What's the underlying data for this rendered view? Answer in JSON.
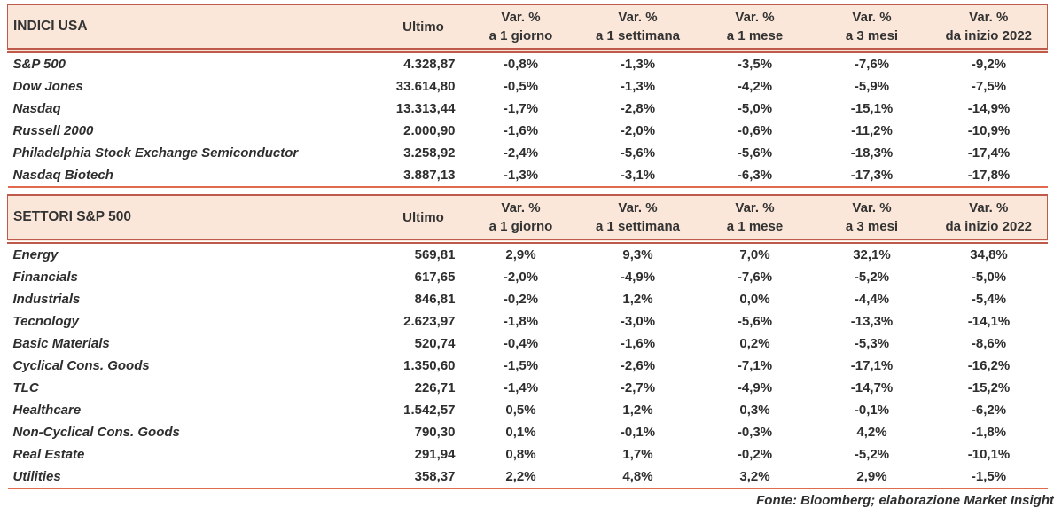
{
  "colors": {
    "header_bg": "#FBE7D9",
    "header_border": "#BD5A4C",
    "table_bottom_border": "#E06A4C",
    "text": "#2E2E2E"
  },
  "footer": {
    "source_note": "Fonte: Bloomberg; elaborazione Market Insight"
  },
  "tables": [
    {
      "title": "INDICI USA",
      "ultimo_header": "Ultimo",
      "var_headers": [
        {
          "l1": "Var. %",
          "l2": "a 1 giorno"
        },
        {
          "l1": "Var. %",
          "l2": "a 1 settimana"
        },
        {
          "l1": "Var. %",
          "l2": "a 1 mese"
        },
        {
          "l1": "Var. %",
          "l2": "a 3 mesi"
        },
        {
          "l1": "Var. %",
          "l2": "da inizio 2022"
        }
      ],
      "rows": [
        {
          "name": "S&P 500",
          "ultimo": "4.328,87",
          "vars": [
            "-0,8%",
            "-1,3%",
            "-3,5%",
            "-7,6%",
            "-9,2%"
          ]
        },
        {
          "name": "Dow Jones",
          "ultimo": "33.614,80",
          "vars": [
            "-0,5%",
            "-1,3%",
            "-4,2%",
            "-5,9%",
            "-7,5%"
          ]
        },
        {
          "name": "Nasdaq",
          "ultimo": "13.313,44",
          "vars": [
            "-1,7%",
            "-2,8%",
            "-5,0%",
            "-15,1%",
            "-14,9%"
          ]
        },
        {
          "name": "Russell 2000",
          "ultimo": "2.000,90",
          "vars": [
            "-1,6%",
            "-2,0%",
            "-0,6%",
            "-11,2%",
            "-10,9%"
          ]
        },
        {
          "name": "Philadelphia Stock Exchange Semiconductor",
          "ultimo": "3.258,92",
          "vars": [
            "-2,4%",
            "-5,6%",
            "-5,6%",
            "-18,3%",
            "-17,4%"
          ]
        },
        {
          "name": "Nasdaq Biotech",
          "ultimo": "3.887,13",
          "vars": [
            "-1,3%",
            "-3,1%",
            "-6,3%",
            "-17,3%",
            "-17,8%"
          ]
        }
      ]
    },
    {
      "title": "SETTORI S&P 500",
      "ultimo_header": "Ultimo",
      "var_headers": [
        {
          "l1": "Var. %",
          "l2": "a 1 giorno"
        },
        {
          "l1": "Var. %",
          "l2": "a 1 settimana"
        },
        {
          "l1": "Var. %",
          "l2": "a 1 mese"
        },
        {
          "l1": "Var. %",
          "l2": "a 3 mesi"
        },
        {
          "l1": "Var. %",
          "l2": "da inizio 2022"
        }
      ],
      "rows": [
        {
          "name": "Energy",
          "ultimo": "569,81",
          "vars": [
            "2,9%",
            "9,3%",
            "7,0%",
            "32,1%",
            "34,8%"
          ]
        },
        {
          "name": "Financials",
          "ultimo": "617,65",
          "vars": [
            "-2,0%",
            "-4,9%",
            "-7,6%",
            "-5,2%",
            "-5,0%"
          ]
        },
        {
          "name": "Industrials",
          "ultimo": "846,81",
          "vars": [
            "-0,2%",
            "1,2%",
            "0,0%",
            "-4,4%",
            "-5,4%"
          ]
        },
        {
          "name": "Tecnology",
          "ultimo": "2.623,97",
          "vars": [
            "-1,8%",
            "-3,0%",
            "-5,6%",
            "-13,3%",
            "-14,1%"
          ]
        },
        {
          "name": "Basic Materials",
          "ultimo": "520,74",
          "vars": [
            "-0,4%",
            "-1,6%",
            "0,2%",
            "-5,3%",
            "-8,6%"
          ]
        },
        {
          "name": "Cyclical Cons. Goods",
          "ultimo": "1.350,60",
          "vars": [
            "-1,5%",
            "-2,6%",
            "-7,1%",
            "-17,1%",
            "-16,2%"
          ]
        },
        {
          "name": "TLC",
          "ultimo": "226,71",
          "vars": [
            "-1,4%",
            "-2,7%",
            "-4,9%",
            "-14,7%",
            "-15,2%"
          ]
        },
        {
          "name": "Healthcare",
          "ultimo": "1.542,57",
          "vars": [
            "0,5%",
            "1,2%",
            "0,3%",
            "-0,1%",
            "-6,2%"
          ]
        },
        {
          "name": "Non-Cyclical Cons. Goods",
          "ultimo": "790,30",
          "vars": [
            "0,1%",
            "-0,1%",
            "-0,3%",
            "4,2%",
            "-1,8%"
          ]
        },
        {
          "name": "Real Estate",
          "ultimo": "291,94",
          "vars": [
            "0,8%",
            "1,7%",
            "-0,2%",
            "-5,2%",
            "-10,1%"
          ]
        },
        {
          "name": "Utilities",
          "ultimo": "358,37",
          "vars": [
            "2,2%",
            "4,8%",
            "3,2%",
            "2,9%",
            "-1,5%"
          ]
        }
      ]
    }
  ]
}
